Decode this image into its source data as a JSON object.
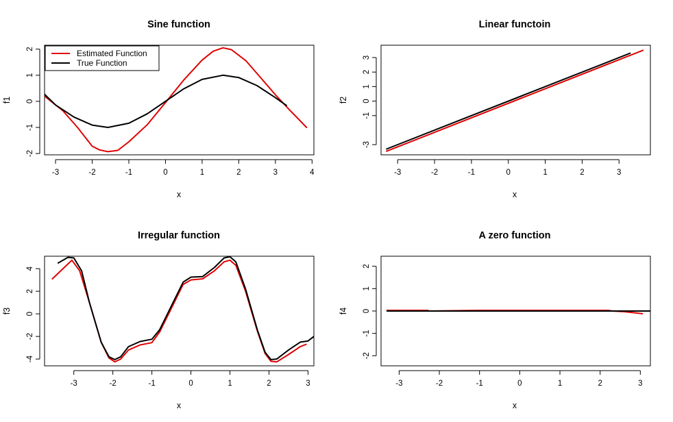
{
  "colors": {
    "estimated": "#e00000",
    "true": "#000000"
  },
  "chart_data": [
    {
      "type": "line",
      "title": "Sine function",
      "xlabel": "x",
      "ylabel": "f1",
      "xlim": [
        -3.3,
        4.05
      ],
      "ylim": [
        -2.05,
        2.15
      ],
      "xticks": [
        -3,
        -2,
        -1,
        0,
        1,
        2,
        3,
        4
      ],
      "yticks": [
        -2,
        -1,
        0,
        1,
        2
      ],
      "legend": {
        "position": "top-left",
        "entries": [
          {
            "name": "Estimated Function",
            "color": "#e00000"
          },
          {
            "name": "True Function",
            "color": "#000000"
          }
        ]
      },
      "series": [
        {
          "name": "Estimated Function",
          "color": "#e00000",
          "x": [
            -3.3,
            -2.8,
            -2.4,
            -2.0,
            -1.8,
            -1.57,
            -1.3,
            -1.0,
            -0.5,
            0.0,
            0.5,
            1.0,
            1.3,
            1.57,
            1.8,
            2.2,
            2.6,
            3.0,
            3.4,
            3.85
          ],
          "y": [
            0.2,
            -0.36,
            -1.0,
            -1.72,
            -1.86,
            -1.93,
            -1.88,
            -1.55,
            -0.9,
            -0.05,
            0.82,
            1.58,
            1.92,
            2.05,
            1.98,
            1.55,
            0.9,
            0.25,
            -0.35,
            -1.0
          ]
        },
        {
          "name": "True Function",
          "color": "#000000",
          "x": [
            -3.3,
            -3.0,
            -2.5,
            -2.0,
            -1.57,
            -1.0,
            -0.5,
            0.0,
            0.5,
            1.0,
            1.57,
            2.0,
            2.5,
            3.0,
            3.3
          ],
          "y": [
            0.27,
            -0.14,
            -0.6,
            -0.91,
            -1.0,
            -0.84,
            -0.48,
            0.0,
            0.48,
            0.84,
            1.0,
            0.91,
            0.6,
            0.14,
            -0.16
          ]
        }
      ]
    },
    {
      "type": "line",
      "title": "Linear functoin",
      "xlabel": "x",
      "ylabel": "f2",
      "xlim": [
        -3.45,
        3.85
      ],
      "ylim": [
        -3.7,
        3.85
      ],
      "xticks": [
        -3,
        -2,
        -1,
        0,
        1,
        2,
        3
      ],
      "yticks": [
        -3,
        -1,
        0,
        1,
        2,
        3
      ],
      "series": [
        {
          "name": "Estimated Function",
          "color": "#e00000",
          "x": [
            -3.3,
            3.65
          ],
          "y": [
            -3.45,
            3.5
          ]
        },
        {
          "name": "True Function",
          "color": "#000000",
          "x": [
            -3.3,
            3.3
          ],
          "y": [
            -3.3,
            3.3
          ]
        }
      ]
    },
    {
      "type": "line",
      "title": "Irregular function",
      "xlabel": "x",
      "ylabel": "f3",
      "xlim": [
        -3.75,
        3.15
      ],
      "ylim": [
        -4.6,
        5.1
      ],
      "xticks": [
        -3,
        -2,
        -1,
        0,
        1,
        2,
        3
      ],
      "yticks": [
        -4,
        -2,
        0,
        2,
        4
      ],
      "series": [
        {
          "name": "Estimated Function",
          "color": "#e00000",
          "x": [
            -3.55,
            -3.05,
            -2.85,
            -2.6,
            -2.3,
            -2.1,
            -1.95,
            -1.8,
            -1.6,
            -1.3,
            -1.0,
            -0.8,
            -0.5,
            -0.2,
            0.0,
            0.3,
            0.6,
            0.85,
            1.0,
            1.15,
            1.4,
            1.7,
            1.9,
            2.05,
            2.2,
            2.5,
            2.8,
            2.95
          ],
          "y": [
            3.1,
            4.75,
            3.8,
            1.0,
            -2.5,
            -3.9,
            -4.25,
            -4.0,
            -3.2,
            -2.75,
            -2.55,
            -1.6,
            0.5,
            2.6,
            3.0,
            3.1,
            3.8,
            4.6,
            4.75,
            4.3,
            2.0,
            -1.5,
            -3.5,
            -4.2,
            -4.25,
            -3.6,
            -2.9,
            -2.7
          ]
        },
        {
          "name": "True Function",
          "color": "#000000",
          "x": [
            -3.4,
            -3.15,
            -3.0,
            -2.8,
            -2.6,
            -2.3,
            -2.1,
            -1.95,
            -1.8,
            -1.6,
            -1.3,
            -1.0,
            -0.8,
            -0.5,
            -0.2,
            0.0,
            0.3,
            0.6,
            0.85,
            1.0,
            1.15,
            1.4,
            1.7,
            1.9,
            2.05,
            2.2,
            2.5,
            2.8,
            3.0,
            3.15
          ],
          "y": [
            4.5,
            5.0,
            4.95,
            3.8,
            1.0,
            -2.5,
            -3.8,
            -4.05,
            -3.8,
            -2.9,
            -2.45,
            -2.25,
            -1.4,
            0.7,
            2.8,
            3.25,
            3.3,
            4.1,
            4.95,
            5.05,
            4.6,
            2.2,
            -1.4,
            -3.4,
            -4.05,
            -4.0,
            -3.2,
            -2.5,
            -2.4,
            -2.0
          ]
        }
      ]
    },
    {
      "type": "line",
      "title": "A zero function",
      "xlabel": "x",
      "ylabel": "f4",
      "xlim": [
        -3.45,
        3.25
      ],
      "ylim": [
        -2.45,
        2.45
      ],
      "xticks": [
        -3,
        -2,
        -1,
        0,
        1,
        2,
        3
      ],
      "yticks": [
        -2,
        -1,
        0,
        1,
        2
      ],
      "series": [
        {
          "name": "Estimated Function",
          "color": "#e00000",
          "x": [
            -3.3,
            -2.3,
            -2.25,
            -1.0,
            2.2,
            2.3,
            2.6,
            2.9,
            3.05
          ],
          "y": [
            0.03,
            0.03,
            0.0,
            0.03,
            0.03,
            0.0,
            -0.03,
            -0.09,
            -0.12
          ]
        },
        {
          "name": "True Function",
          "color": "#000000",
          "x": [
            -3.3,
            3.25
          ],
          "y": [
            0.0,
            0.0
          ]
        }
      ]
    }
  ]
}
